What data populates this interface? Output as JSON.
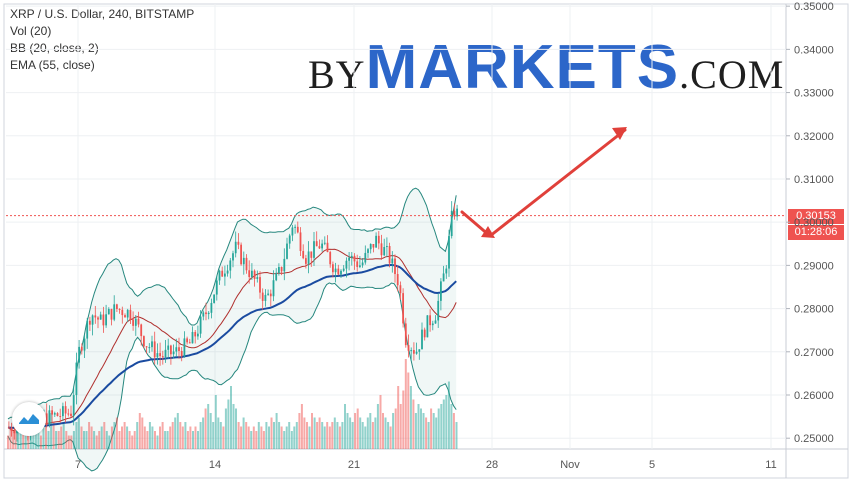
{
  "legend": {
    "symbol": "XRP / U.S. Dollar, 240, BITSTAMP",
    "vol": "Vol (20)",
    "bb": "BB (20, close, 2)",
    "ema": "EMA (55, close)"
  },
  "logo": {
    "by": "BY",
    "markets": "MARKETS",
    "com": ".COM"
  },
  "price_badge": {
    "value": "0.30153",
    "countdown": "01:28:06",
    "color": "#ef5350"
  },
  "colors": {
    "up": "#26a69a",
    "down": "#ef5350",
    "bb_band": "#26877e",
    "bb_basis": "#b0302e",
    "ema": "#1a4ba0",
    "arrow": "#e0403a"
  },
  "chart_data": {
    "type": "candlestick",
    "title": "XRP / U.S. Dollar, 240, BITSTAMP",
    "x_ticks": [
      "7",
      "14",
      "21",
      "28",
      "Nov",
      "5",
      "11"
    ],
    "y_ticks": [
      "0.35000",
      "0.34000",
      "0.33000",
      "0.32000",
      "0.31000",
      "0.30000",
      "0.29000",
      "0.28000",
      "0.27000",
      "0.26000",
      "0.25000"
    ],
    "ylim": [
      0.2475,
      0.3505
    ],
    "last_price": 0.30153,
    "indicators": [
      "Vol (20)",
      "BB (20, close, 2)",
      "EMA (55, close)"
    ],
    "volume_bars": [
      0.15,
      0.25,
      0.2,
      0.35,
      0.3,
      0.2,
      0.25,
      0.2,
      0.15,
      0.2,
      0.25,
      0.3,
      0.2,
      0.15,
      0.3,
      0.25,
      0.2,
      0.4,
      0.3,
      0.2,
      0.2,
      0.25,
      0.3,
      0.2,
      0.15,
      0.15,
      0.2,
      0.3,
      0.35,
      0.25,
      0.2,
      0.2,
      0.3,
      0.25,
      0.2,
      0.15,
      0.2,
      0.25,
      0.3,
      0.2,
      0.15,
      0.25,
      0.3,
      0.35,
      0.2,
      0.25,
      0.3,
      0.25,
      0.2,
      0.15,
      0.2,
      0.3,
      0.4,
      0.35,
      0.25,
      0.2,
      0.3,
      0.25,
      0.2,
      0.15,
      0.25,
      0.3,
      0.2,
      0.2,
      0.25,
      0.3,
      0.35,
      0.4,
      0.3,
      0.25,
      0.3,
      0.2,
      0.25,
      0.2,
      0.25,
      0.2,
      0.3,
      0.35,
      0.45,
      0.5,
      0.4,
      0.3,
      0.6,
      0.35,
      0.3,
      0.25,
      0.45,
      0.55,
      0.7,
      0.5,
      0.45,
      0.3,
      0.25,
      0.35,
      0.3,
      0.25,
      0.2,
      0.25,
      0.2,
      0.3,
      0.25,
      0.2,
      0.3,
      0.25,
      0.35,
      0.3,
      0.4,
      0.3,
      0.25,
      0.2,
      0.25,
      0.3,
      0.2,
      0.25,
      0.3,
      0.4,
      0.5,
      0.35,
      0.3,
      0.25,
      0.4,
      0.35,
      0.3,
      0.35,
      0.3,
      0.25,
      0.3,
      0.25,
      0.3,
      0.35,
      0.3,
      0.25,
      0.3,
      0.5,
      0.4,
      0.35,
      0.3,
      0.4,
      0.45,
      0.35,
      0.3,
      0.25,
      0.35,
      0.4,
      0.3,
      0.35,
      0.5,
      0.6,
      0.4,
      0.35,
      0.3,
      0.25,
      0.4,
      0.45,
      0.7,
      0.5,
      0.65,
      1.0,
      0.85,
      0.7,
      0.55,
      0.4,
      0.5,
      0.45,
      0.4,
      0.35,
      0.3,
      0.45,
      0.4,
      0.35,
      0.45,
      0.5,
      0.55,
      0.6,
      0.75,
      0.5,
      0.4,
      0.3
    ]
  }
}
